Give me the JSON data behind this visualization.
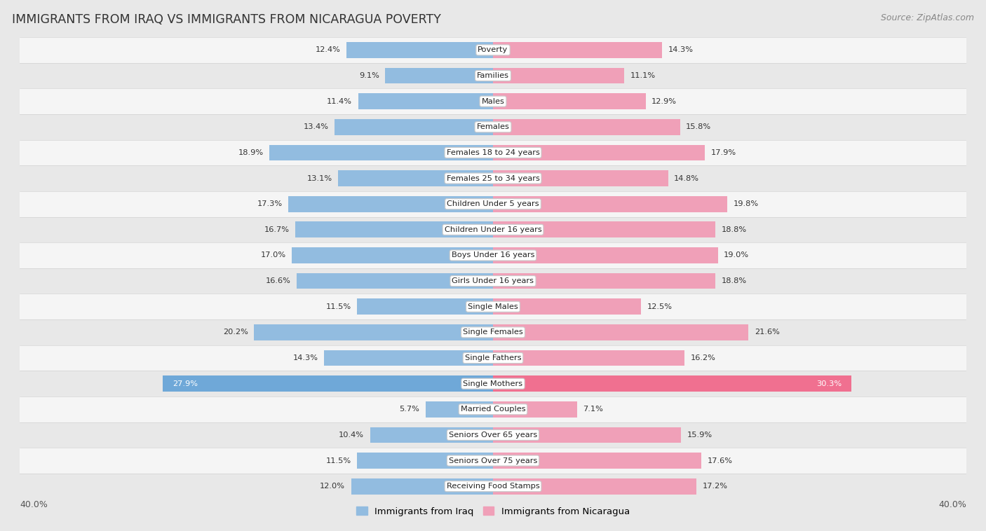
{
  "title": "IMMIGRANTS FROM IRAQ VS IMMIGRANTS FROM NICARAGUA POVERTY",
  "source": "Source: ZipAtlas.com",
  "categories": [
    "Poverty",
    "Families",
    "Males",
    "Females",
    "Females 18 to 24 years",
    "Females 25 to 34 years",
    "Children Under 5 years",
    "Children Under 16 years",
    "Boys Under 16 years",
    "Girls Under 16 years",
    "Single Males",
    "Single Females",
    "Single Fathers",
    "Single Mothers",
    "Married Couples",
    "Seniors Over 65 years",
    "Seniors Over 75 years",
    "Receiving Food Stamps"
  ],
  "iraq_values": [
    12.4,
    9.1,
    11.4,
    13.4,
    18.9,
    13.1,
    17.3,
    16.7,
    17.0,
    16.6,
    11.5,
    20.2,
    14.3,
    27.9,
    5.7,
    10.4,
    11.5,
    12.0
  ],
  "nicaragua_values": [
    14.3,
    11.1,
    12.9,
    15.8,
    17.9,
    14.8,
    19.8,
    18.8,
    19.0,
    18.8,
    12.5,
    21.6,
    16.2,
    30.3,
    7.1,
    15.9,
    17.6,
    17.2
  ],
  "iraq_color": "#92bce0",
  "nicaragua_color": "#f0a0b8",
  "iraq_color_single_mothers": "#6fa8d8",
  "nicaragua_color_single_mothers": "#f07090",
  "iraq_label": "Immigrants from Iraq",
  "nicaragua_label": "Immigrants from Nicaragua",
  "axis_max": 40.0,
  "bar_height": 0.62,
  "background_color": "#e8e8e8",
  "row_bg_odd": "#f5f5f5",
  "row_bg_even": "#e8e8e8"
}
